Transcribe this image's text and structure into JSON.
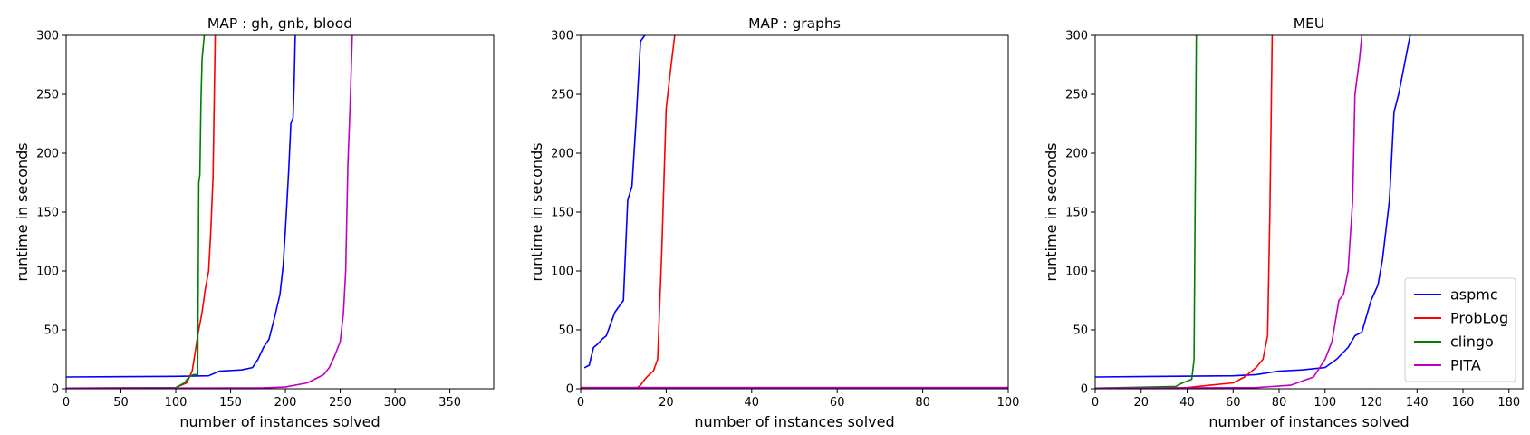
{
  "chart_data": [
    {
      "type": "line",
      "title": "MAP : gh, gnb, blood",
      "xlabel": "number of instances solved",
      "ylabel": "runtime in seconds",
      "xlim": [
        0,
        390
      ],
      "ylim": [
        0,
        300
      ],
      "xticks": [
        0,
        50,
        100,
        150,
        200,
        250,
        300,
        350
      ],
      "yticks": [
        0,
        50,
        100,
        150,
        200,
        250,
        300
      ],
      "series": [
        {
          "name": "aspmc",
          "color": "#0000ff",
          "points": [
            [
              0,
              10
            ],
            [
              100,
              10.5
            ],
            [
              130,
              11
            ],
            [
              140,
              15
            ],
            [
              160,
              16
            ],
            [
              170,
              18
            ],
            [
              175,
              25
            ],
            [
              180,
              35
            ],
            [
              185,
              42
            ],
            [
              190,
              60
            ],
            [
              195,
              80
            ],
            [
              198,
              105
            ],
            [
              200,
              135
            ],
            [
              203,
              185
            ],
            [
              205,
              225
            ],
            [
              207,
              230
            ],
            [
              208,
              260
            ],
            [
              209,
              300
            ]
          ]
        },
        {
          "name": "ProbLog",
          "color": "#ff0000",
          "points": [
            [
              0,
              0.5
            ],
            [
              100,
              1
            ],
            [
              110,
              5
            ],
            [
              115,
              15
            ],
            [
              120,
              45
            ],
            [
              124,
              65
            ],
            [
              127,
              85
            ],
            [
              130,
              100
            ],
            [
              132,
              135
            ],
            [
              134,
              180
            ],
            [
              136,
              300
            ]
          ]
        },
        {
          "name": "clingo",
          "color": "#008000",
          "points": [
            [
              0,
              0.5
            ],
            [
              100,
              1
            ],
            [
              108,
              5
            ],
            [
              112,
              10
            ],
            [
              116,
              12
            ],
            [
              120,
              12
            ],
            [
              121,
              175
            ],
            [
              122,
              182
            ],
            [
              123,
              245
            ],
            [
              124,
              280
            ],
            [
              126,
              300
            ]
          ]
        },
        {
          "name": "PITA",
          "color": "#c000c0",
          "points": [
            [
              0,
              0.5
            ],
            [
              180,
              0.8
            ],
            [
              200,
              1.5
            ],
            [
              220,
              5
            ],
            [
              235,
              12
            ],
            [
              240,
              18
            ],
            [
              245,
              28
            ],
            [
              250,
              40
            ],
            [
              253,
              65
            ],
            [
              255,
              100
            ],
            [
              257,
              190
            ],
            [
              259,
              240
            ],
            [
              261,
              300
            ]
          ]
        }
      ]
    },
    {
      "type": "line",
      "title": "MAP : graphs",
      "xlabel": "number of instances solved",
      "ylabel": "runtime in seconds",
      "xlim": [
        0,
        100
      ],
      "ylim": [
        0,
        300
      ],
      "xticks": [
        0,
        20,
        40,
        60,
        80,
        100
      ],
      "yticks": [
        0,
        50,
        100,
        150,
        200,
        250,
        300
      ],
      "series": [
        {
          "name": "aspmc",
          "color": "#0000ff",
          "points": [
            [
              1,
              18
            ],
            [
              2,
              20
            ],
            [
              3,
              35
            ],
            [
              4,
              38
            ],
            [
              5,
              42
            ],
            [
              6,
              45
            ],
            [
              7,
              55
            ],
            [
              8,
              65
            ],
            [
              9,
              70
            ],
            [
              10,
              75
            ],
            [
              11,
              160
            ],
            [
              12,
              172
            ],
            [
              13,
              230
            ],
            [
              14,
              295
            ],
            [
              15,
              300
            ]
          ]
        },
        {
          "name": "ProbLog",
          "color": "#ff0000",
          "points": [
            [
              0,
              0.5
            ],
            [
              13,
              0.5
            ],
            [
              14,
              3
            ],
            [
              15,
              8
            ],
            [
              16,
              12
            ],
            [
              17,
              15
            ],
            [
              18,
              25
            ],
            [
              19,
              120
            ],
            [
              20,
              238
            ],
            [
              21,
              270
            ],
            [
              22,
              300
            ]
          ]
        },
        {
          "name": "clingo",
          "color": "#008000",
          "points": [
            [
              0,
              1
            ],
            [
              100,
              1
            ]
          ]
        },
        {
          "name": "PITA",
          "color": "#c000c0",
          "points": [
            [
              0,
              1
            ],
            [
              100,
              1
            ]
          ]
        }
      ]
    },
    {
      "type": "line",
      "title": "MEU",
      "xlabel": "number of instances solved",
      "ylabel": "runtime in seconds",
      "xlim": [
        0,
        186
      ],
      "ylim": [
        0,
        300
      ],
      "xticks": [
        0,
        20,
        40,
        60,
        80,
        100,
        120,
        140,
        160,
        180
      ],
      "yticks": [
        0,
        50,
        100,
        150,
        200,
        250,
        300
      ],
      "legend_position": "lower-right",
      "series": [
        {
          "name": "aspmc",
          "color": "#0000ff",
          "points": [
            [
              0,
              10
            ],
            [
              60,
              11
            ],
            [
              70,
              12
            ],
            [
              80,
              15
            ],
            [
              90,
              16
            ],
            [
              100,
              18
            ],
            [
              105,
              25
            ],
            [
              110,
              35
            ],
            [
              113,
              45
            ],
            [
              116,
              48
            ],
            [
              120,
              75
            ],
            [
              123,
              88
            ],
            [
              125,
              110
            ],
            [
              128,
              160
            ],
            [
              130,
              235
            ],
            [
              132,
              250
            ],
            [
              134,
              270
            ],
            [
              136,
              290
            ],
            [
              137,
              300
            ]
          ]
        },
        {
          "name": "ProbLog",
          "color": "#ff0000",
          "points": [
            [
              0,
              0.5
            ],
            [
              40,
              1
            ],
            [
              50,
              3
            ],
            [
              60,
              5
            ],
            [
              65,
              10
            ],
            [
              70,
              18
            ],
            [
              73,
              25
            ],
            [
              75,
              45
            ],
            [
              76,
              150
            ],
            [
              77,
              300
            ]
          ]
        },
        {
          "name": "clingo",
          "color": "#008000",
          "points": [
            [
              0,
              0.5
            ],
            [
              35,
              2
            ],
            [
              38,
              5
            ],
            [
              42,
              8
            ],
            [
              43,
              25
            ],
            [
              44,
              300
            ]
          ]
        },
        {
          "name": "PITA",
          "color": "#c000c0",
          "points": [
            [
              0,
              0.5
            ],
            [
              70,
              1
            ],
            [
              85,
              3
            ],
            [
              95,
              10
            ],
            [
              100,
              25
            ],
            [
              103,
              40
            ],
            [
              106,
              75
            ],
            [
              108,
              80
            ],
            [
              110,
              100
            ],
            [
              112,
              160
            ],
            [
              113,
              250
            ],
            [
              115,
              280
            ],
            [
              116,
              300
            ]
          ]
        }
      ]
    }
  ]
}
